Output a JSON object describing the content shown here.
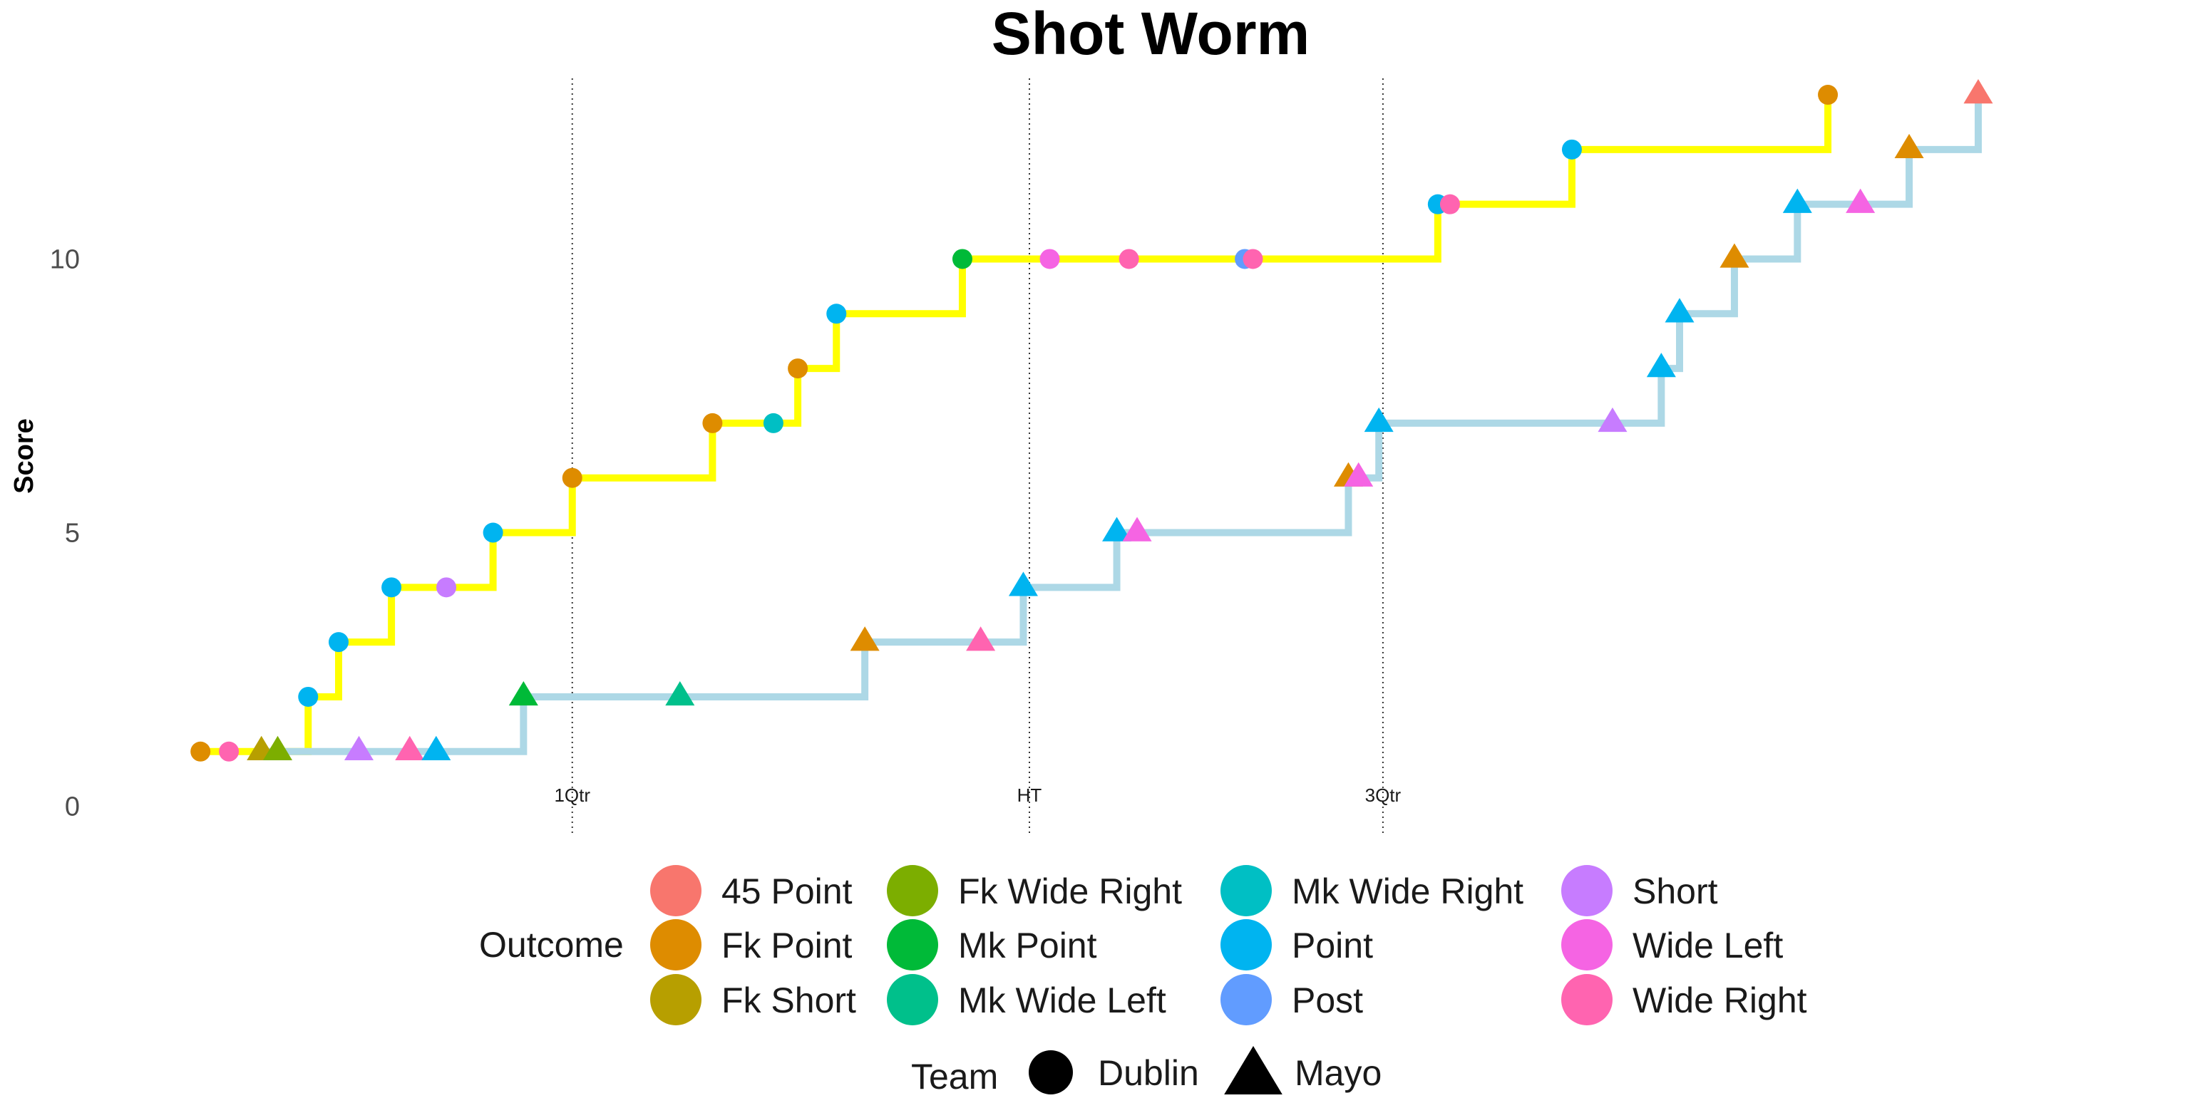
{
  "chart_data": {
    "type": "line",
    "title": "Shot Worm",
    "xlabel": "",
    "ylabel": "Score",
    "x_range": [
      0,
      100
    ],
    "ylim": [
      -0.5,
      13.3
    ],
    "y_ticks": [
      0,
      5,
      10
    ],
    "grid": false,
    "period_lines": [
      {
        "label": "1Qtr",
        "x": 21.5
      },
      {
        "label": "HT",
        "x": 44.0
      },
      {
        "label": "3Qtr",
        "x": 61.4
      }
    ],
    "series": [
      {
        "name": "Dublin",
        "shape": "circle",
        "line_color": "#FFFF00",
        "points": [
          {
            "x": 3.2,
            "y": 1,
            "outcome": "Fk Point"
          },
          {
            "x": 4.6,
            "y": 1,
            "outcome": "Wide Right"
          },
          {
            "x": 8.5,
            "y": 2,
            "outcome": "Point"
          },
          {
            "x": 10.0,
            "y": 3,
            "outcome": "Point"
          },
          {
            "x": 12.6,
            "y": 4,
            "outcome": "Point"
          },
          {
            "x": 15.3,
            "y": 4,
            "outcome": "Short"
          },
          {
            "x": 17.6,
            "y": 5,
            "outcome": "Point"
          },
          {
            "x": 21.5,
            "y": 6,
            "outcome": "Fk Point"
          },
          {
            "x": 28.4,
            "y": 7,
            "outcome": "Fk Point"
          },
          {
            "x": 31.4,
            "y": 7,
            "outcome": "Mk Wide Right"
          },
          {
            "x": 32.6,
            "y": 8,
            "outcome": "Fk Point"
          },
          {
            "x": 34.5,
            "y": 9,
            "outcome": "Point"
          },
          {
            "x": 40.7,
            "y": 10,
            "outcome": "Mk Point"
          },
          {
            "x": 45.0,
            "y": 10,
            "outcome": "Wide Left"
          },
          {
            "x": 48.9,
            "y": 10,
            "outcome": "Wide Right"
          },
          {
            "x": 54.6,
            "y": 10,
            "outcome": "Post"
          },
          {
            "x": 55.0,
            "y": 10,
            "outcome": "Wide Right"
          },
          {
            "x": 64.1,
            "y": 11,
            "outcome": "Point"
          },
          {
            "x": 64.7,
            "y": 11,
            "outcome": "Wide Right"
          },
          {
            "x": 70.7,
            "y": 12,
            "outcome": "Point"
          },
          {
            "x": 83.3,
            "y": 13,
            "outcome": "Fk Point"
          }
        ]
      },
      {
        "name": "Mayo",
        "shape": "triangle",
        "line_color": "#ADD8E6",
        "points": [
          {
            "x": 6.2,
            "y": 1,
            "outcome": "Fk Short"
          },
          {
            "x": 7.0,
            "y": 1,
            "outcome": "Fk Wide Right"
          },
          {
            "x": 11.0,
            "y": 1,
            "outcome": "Short"
          },
          {
            "x": 13.5,
            "y": 1,
            "outcome": "Wide Right"
          },
          {
            "x": 14.8,
            "y": 1,
            "outcome": "Point"
          },
          {
            "x": 19.1,
            "y": 2,
            "outcome": "Mk Point"
          },
          {
            "x": 26.8,
            "y": 2,
            "outcome": "Mk Wide Left"
          },
          {
            "x": 35.9,
            "y": 3,
            "outcome": "Fk Point"
          },
          {
            "x": 41.6,
            "y": 3,
            "outcome": "Wide Right"
          },
          {
            "x": 43.7,
            "y": 4,
            "outcome": "Point"
          },
          {
            "x": 48.3,
            "y": 5,
            "outcome": "Point"
          },
          {
            "x": 49.3,
            "y": 5,
            "outcome": "Wide Left"
          },
          {
            "x": 59.7,
            "y": 6,
            "outcome": "Fk Point"
          },
          {
            "x": 60.2,
            "y": 6,
            "outcome": "Wide Left"
          },
          {
            "x": 61.2,
            "y": 7,
            "outcome": "Point"
          },
          {
            "x": 72.7,
            "y": 7,
            "outcome": "Short"
          },
          {
            "x": 75.1,
            "y": 8,
            "outcome": "Point"
          },
          {
            "x": 76.0,
            "y": 9,
            "outcome": "Point"
          },
          {
            "x": 78.7,
            "y": 10,
            "outcome": "Fk Point"
          },
          {
            "x": 81.8,
            "y": 11,
            "outcome": "Point"
          },
          {
            "x": 84.9,
            "y": 11,
            "outcome": "Wide Left"
          },
          {
            "x": 87.3,
            "y": 12,
            "outcome": "Fk Point"
          },
          {
            "x": 90.7,
            "y": 13,
            "outcome": "45 Point"
          }
        ]
      }
    ],
    "legend": {
      "position": "bottom",
      "outcome_title": "Outcome",
      "outcomes": [
        {
          "name": "45 Point",
          "color": "#F8766D"
        },
        {
          "name": "Fk Point",
          "color": "#DE8C00"
        },
        {
          "name": "Fk Short",
          "color": "#B79F00"
        },
        {
          "name": "Fk Wide Right",
          "color": "#7CAE00"
        },
        {
          "name": "Mk Point",
          "color": "#00BA38"
        },
        {
          "name": "Mk Wide Left",
          "color": "#00C08B"
        },
        {
          "name": "Mk Wide Right",
          "color": "#00BFC4"
        },
        {
          "name": "Point",
          "color": "#00B4F0"
        },
        {
          "name": "Post",
          "color": "#619CFF"
        },
        {
          "name": "Short",
          "color": "#C77CFF"
        },
        {
          "name": "Wide Left",
          "color": "#F564E3"
        },
        {
          "name": "Wide Right",
          "color": "#FF64B0"
        }
      ],
      "team_title": "Team",
      "teams": [
        {
          "name": "Dublin",
          "shape": "circle"
        },
        {
          "name": "Mayo",
          "shape": "triangle"
        }
      ]
    }
  }
}
